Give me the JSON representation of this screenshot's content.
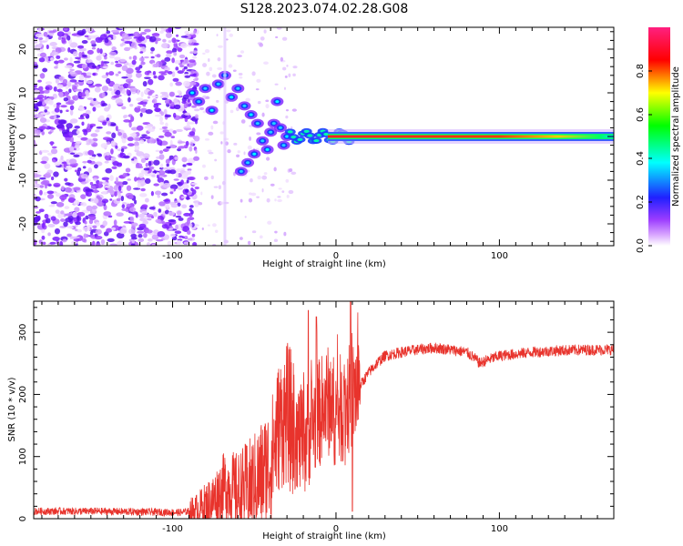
{
  "title": "S128.2023.074.02.28.G08",
  "colors": {
    "signal": "#e8332c",
    "axis": "#000000",
    "background": "#ffffff"
  },
  "chart_data": [
    {
      "type": "heatmap",
      "name": "spectrogram",
      "xlabel": "Height of straight line (km)",
      "ylabel": "Frequency (Hz)",
      "xlim": [
        -185,
        170
      ],
      "ylim": [
        -25,
        25
      ],
      "xticks": [
        -100,
        0,
        100
      ],
      "yticks": [
        -20,
        -10,
        0,
        10,
        20
      ],
      "colorbar": {
        "label": "Normalized spectral amplitude",
        "range": [
          0,
          1
        ],
        "ticks": [
          "0.0",
          "0.2",
          "0.4",
          "0.6",
          "0.8"
        ],
        "colormap": [
          "#ffffff",
          "#b040ff",
          "#0000ff",
          "#00ffff",
          "#00ff00",
          "#ffff00",
          "#ff0000",
          "#ff0080"
        ]
      },
      "features": {
        "noise_region": [
          -185,
          -90
        ],
        "scatter_region": [
          -90,
          -25
        ],
        "tone_frequency_hz": 0,
        "tone_start_km": -25
      }
    },
    {
      "type": "line",
      "name": "snr",
      "xlabel": "Height of straight line (km)",
      "ylabel": "SNR (10 * v/v)",
      "xlim": [
        -185,
        170
      ],
      "ylim": [
        0,
        350
      ],
      "xticks": [
        -100,
        0,
        100
      ],
      "yticks": [
        0,
        100,
        200,
        300
      ],
      "series": [
        {
          "name": "SNR",
          "x": [
            -185,
            -150,
            -120,
            -95,
            -85,
            -75,
            -68,
            -60,
            -50,
            -40,
            -35,
            -30,
            -25,
            -20,
            -15,
            -10,
            -5,
            0,
            5,
            10,
            15,
            20,
            25,
            30,
            40,
            50,
            60,
            70,
            80,
            85,
            88,
            92,
            100,
            120,
            140,
            160,
            170
          ],
          "values": [
            12,
            12,
            11,
            10,
            14,
            30,
            55,
            40,
            55,
            90,
            150,
            170,
            140,
            120,
            150,
            170,
            190,
            170,
            180,
            200,
            215,
            235,
            250,
            262,
            268,
            272,
            275,
            272,
            268,
            258,
            250,
            255,
            262,
            268,
            271,
            272,
            272
          ],
          "spikes": [
            {
              "x": -17,
              "value": 335
            },
            {
              "x": -12,
              "value": 325
            },
            {
              "x": 9,
              "value": 350
            },
            {
              "x": 10,
              "value": 12
            }
          ]
        }
      ]
    }
  ]
}
